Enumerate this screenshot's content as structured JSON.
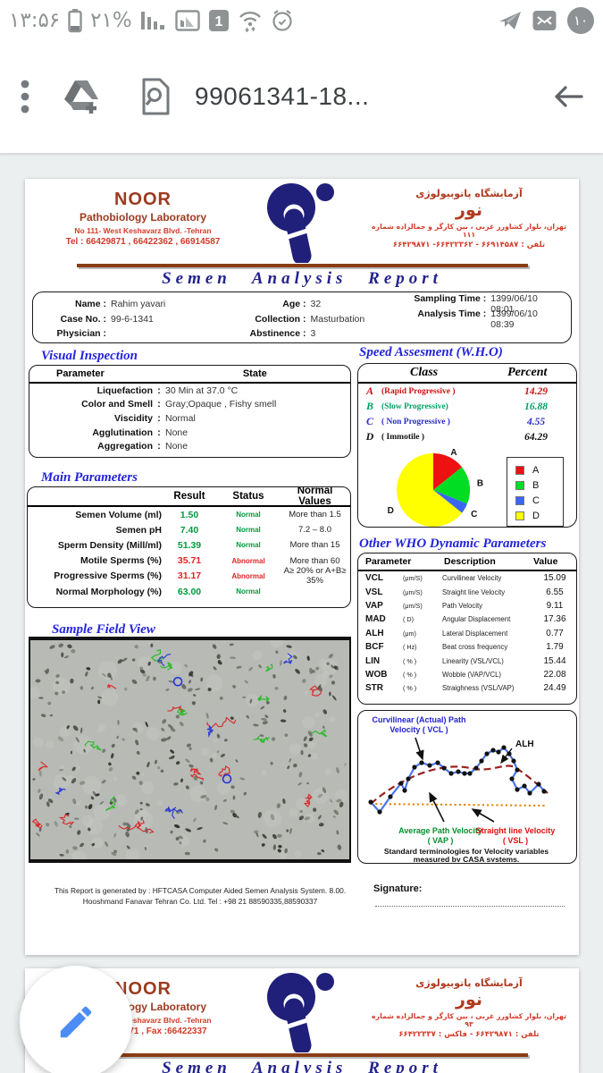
{
  "status_bar": {
    "time": "۱۳:۵۶",
    "battery_percent": "۲۱%",
    "sim_label": "1",
    "notification_badge": "۱۰"
  },
  "toolbar": {
    "title": "99061341-18..."
  },
  "lab": {
    "name_en": "NOOR",
    "dept_en": "Pathobiology  Laboratory",
    "address_en": "No 111- West Keshavarz Blvd.  -Tehran",
    "tel_en": "Tel : 66429871 , 66422362 , 66914587",
    "title_fa": "آزمایشگاه پاتوبیولوژی",
    "name_fa": "نور",
    "address_fa": "تهران، بلوار کشاورز غربی ، بین کارگر و جمالزاده شماره ۱۱۱",
    "tel_fa": "تلفن :  ۶۶۹۱۴۵۸۷ - ۶۶۴۲۲۳۶۲- ۶۶۴۲۹۸۷۱"
  },
  "lab_page2": {
    "tel_en": "Tel : 66429871 , Fax :66422337",
    "address_fa": "تهران، بلوار کشاورز غربی ، بین کارگر و جمالزاده شماره ۹۳",
    "tel_fa": "تلفن :  ۶۶۴۲۹۸۷۱ - فاکس : ۶۶۴۲۲۳۳۷"
  },
  "report_title": "Semen Analysis Report",
  "patient": {
    "rows": [
      [
        {
          "l": "Name :",
          "v": "Rahim yavari"
        },
        {
          "l": "Age :",
          "v": "32"
        },
        {
          "l": "Sampling Time :",
          "v": "1399/06/10 08:01"
        }
      ],
      [
        {
          "l": "Case No. :",
          "v": "99-6-1341"
        },
        {
          "l": "Collection :",
          "v": "Masturbation"
        },
        {
          "l": "Analysis Time :",
          "v": "1399/06/10 08:39"
        }
      ],
      [
        {
          "l": "Physician :",
          "v": ""
        },
        {
          "l": "Abstinence :",
          "v": "3"
        },
        {
          "l": "",
          "v": ""
        }
      ]
    ]
  },
  "visual_inspection": {
    "title": "Visual Inspection",
    "headers": [
      "Parameter",
      "State"
    ],
    "rows": [
      {
        "label": "Liquefaction",
        "value": "30  Min at  37.0 °C"
      },
      {
        "label": "Color and Smell",
        "value": "Gray;Opaque  ,    Fishy smell"
      },
      {
        "label": "Viscidity",
        "value": "Normal"
      },
      {
        "label": "Agglutination",
        "value": "None"
      },
      {
        "label": "Aggregation",
        "value": "None"
      }
    ]
  },
  "speed_assessment": {
    "title": "Speed Assesment (W.H.O)",
    "headers": [
      "Class",
      "Percent"
    ],
    "rows": [
      {
        "cls": "A",
        "desc": "(Rapid Progressive )",
        "pct": "14.29",
        "color": "#cc1111"
      },
      {
        "cls": "B",
        "desc": "(Slow Progressive)",
        "pct": "16.88",
        "color": "#00a165"
      },
      {
        "cls": "C",
        "desc": "( Non Progressive )",
        "pct": "4.55",
        "color": "#2a2ac8"
      },
      {
        "cls": "D",
        "desc": "( Immotile )",
        "pct": "64.29",
        "color": "#111111"
      }
    ]
  },
  "chart_data": {
    "type": "pie",
    "title": "Speed Assesment (W.H.O)",
    "labels": [
      "A",
      "B",
      "C",
      "D"
    ],
    "values": [
      14.29,
      16.88,
      4.55,
      64.29
    ],
    "colors": [
      "#ee1111",
      "#00dd22",
      "#3a66f0",
      "#ffff00"
    ],
    "legend_position": "right",
    "start_angle_deg": 0,
    "direction": "clockwise"
  },
  "main_parameters": {
    "title": "Main Parameters",
    "headers": [
      "Result",
      "Status",
      "Normal Values"
    ],
    "rows": [
      {
        "label": "Semen Volume (ml)",
        "result": "1.50",
        "status": "Normal",
        "normal": "More than 1.5",
        "ok": true
      },
      {
        "label": "Semen pH",
        "result": "7.40",
        "status": "Normal",
        "normal": "7.2 – 8.0",
        "ok": true
      },
      {
        "label": "Sperm Density (Mill/ml)",
        "result": "51.39",
        "status": "Normal",
        "normal": "More than  15",
        "ok": true
      },
      {
        "label": "Motile Sperms (%)",
        "result": "35.71",
        "status": "Abnormal",
        "normal": "More than 60",
        "ok": false
      },
      {
        "label": "Progressive Sperms (%)",
        "result": "31.17",
        "status": "Abnormal",
        "normal": "A≥ 20% or A+B≥ 35%",
        "ok": false
      },
      {
        "label": "Normal Morphology (%)",
        "result": "63.00",
        "status": "Normal",
        "normal": "",
        "ok": true
      }
    ]
  },
  "who_dynamic": {
    "title": "Other WHO Dynamic Parameters",
    "headers": [
      "Parameter",
      "Description",
      "Value"
    ],
    "rows": [
      {
        "param": "VCL",
        "unit": "(μm/S)",
        "desc": "Curvilinear Velocity",
        "value": "15.09"
      },
      {
        "param": "VSL",
        "unit": "(μm/S)",
        "desc": "Straight line Velocity",
        "value": "6.55"
      },
      {
        "param": "VAP",
        "unit": "(μm/S)",
        "desc": "Path Velocity",
        "value": "9.11"
      },
      {
        "param": "MAD",
        "unit": "( D)",
        "desc": "Angular Displacement",
        "value": "17.36"
      },
      {
        "param": "ALH",
        "unit": "(μm)",
        "desc": "Lateral Displacement",
        "value": "0.77"
      },
      {
        "param": "BCF",
        "unit": "( Hz)",
        "desc": "Beat cross frequency",
        "value": "1.79"
      },
      {
        "param": "LIN",
        "unit": "( % )",
        "desc": "Linearity (VSL/VCL)",
        "value": "15.44"
      },
      {
        "param": "WOB",
        "unit": "( % )",
        "desc": "Wobble  (VAP/VCL)",
        "value": "22.08"
      },
      {
        "param": "STR",
        "unit": "( % )",
        "desc": "Straighness (VSL/VAP)",
        "value": "24.49"
      }
    ]
  },
  "sample_field": {
    "title": "Sample Field View"
  },
  "casa": {
    "vcl1": "Curvilinear (Actual) Path",
    "vcl2": "Velocity ( VCL )",
    "alh": "ALH",
    "vap1": "Average Path Velocity",
    "vap2": "( VAP )",
    "vsl1": "Straight line Velocity",
    "vsl2": "( VSL )",
    "cap1": "Standard terminologies for Velocity variables",
    "cap2": "measured by CASA systems."
  },
  "footer": {
    "line1": "This Report is generated by : HFTCASA Computer Aided Semen Analysis System. 8.00.",
    "line2": "Hooshmand Fanavar Tehran Co. Ltd.    Tel : +98 21 88590335,88590337",
    "signature": "Signature:"
  }
}
